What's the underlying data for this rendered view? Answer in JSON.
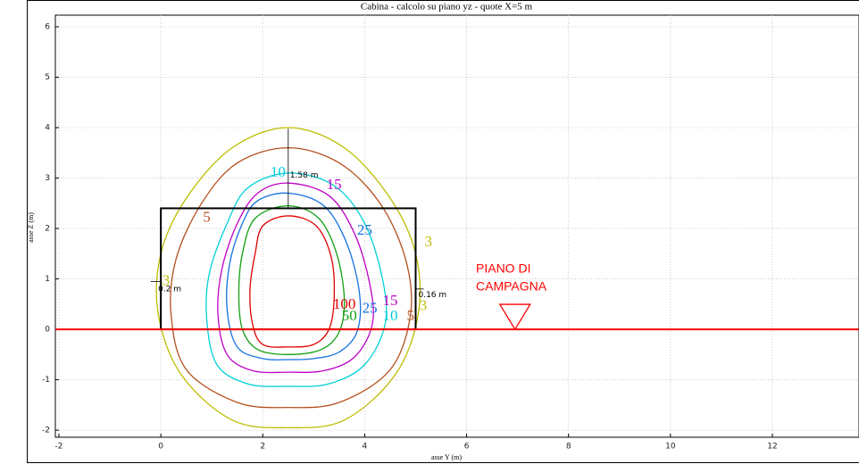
{
  "chart_data": {
    "type": "contour",
    "title": "Cabina  -  calcolo su piano yz  -  quote X=5 m",
    "x_label": "asse Y (m)",
    "y_label": "asse Z (m)",
    "xlim": [
      -2.07,
      13.7
    ],
    "ylim": [
      -2.14,
      6.23
    ],
    "xticks": [
      -2,
      0,
      2,
      4,
      6,
      8,
      10,
      12
    ],
    "yticks": [
      -2,
      -1,
      0,
      1,
      2,
      3,
      4,
      5,
      6
    ],
    "grid": true,
    "series": [
      {
        "name": "3",
        "color": "#bdbd00",
        "x": [
          2.5,
          3.6,
          4.5,
          5.0,
          5.05,
          4.6,
          3.6,
          2.5,
          1.4,
          0.4,
          -0.05,
          0.0,
          0.5,
          1.4
        ],
        "y": [
          4.0,
          3.6,
          2.6,
          1.5,
          0.3,
          -0.9,
          -1.8,
          -1.95,
          -1.8,
          -0.9,
          0.3,
          1.5,
          2.6,
          3.6
        ]
      },
      {
        "name": "5",
        "color": "#b4501e",
        "x": [
          2.5,
          3.5,
          4.3,
          4.8,
          4.9,
          4.5,
          3.5,
          2.5,
          1.5,
          0.5,
          0.2,
          0.3,
          0.8,
          1.5
        ],
        "y": [
          3.6,
          3.3,
          2.5,
          1.4,
          0.3,
          -0.8,
          -1.45,
          -1.55,
          -1.45,
          -0.8,
          0.3,
          1.4,
          2.5,
          3.3
        ]
      },
      {
        "name": "10",
        "color": "#00d0d8",
        "x": [
          2.5,
          3.4,
          4.0,
          4.35,
          4.4,
          4.0,
          3.3,
          2.5,
          1.7,
          1.1,
          0.9,
          0.95,
          1.3,
          1.7
        ],
        "y": [
          3.1,
          2.85,
          2.1,
          1.0,
          0.1,
          -0.7,
          -1.08,
          -1.13,
          -1.08,
          -0.7,
          0.2,
          1.1,
          2.1,
          2.8
        ]
      },
      {
        "name": "15",
        "color": "#c000c8",
        "x": [
          2.5,
          3.3,
          3.8,
          4.1,
          4.15,
          3.8,
          3.2,
          2.5,
          1.8,
          1.3,
          1.12,
          1.2,
          1.5,
          1.9
        ],
        "y": [
          2.9,
          2.65,
          1.9,
          0.9,
          0.1,
          -0.55,
          -0.82,
          -0.85,
          -0.82,
          -0.5,
          0.3,
          1.2,
          2.1,
          2.7
        ]
      },
      {
        "name": "25",
        "color": "#1472e0",
        "x": [
          2.5,
          3.2,
          3.65,
          3.9,
          3.85,
          3.5,
          3.0,
          2.5,
          2.0,
          1.5,
          1.3,
          1.35,
          1.6,
          1.9
        ],
        "y": [
          2.7,
          2.45,
          1.7,
          0.7,
          -0.05,
          -0.45,
          -0.58,
          -0.6,
          -0.58,
          -0.35,
          0.4,
          1.3,
          2.1,
          2.55
        ]
      },
      {
        "name": "50",
        "color": "#10a010",
        "x": [
          2.5,
          3.1,
          3.45,
          3.6,
          3.5,
          3.15,
          2.5,
          1.9,
          1.6,
          1.53,
          1.6,
          1.85
        ],
        "y": [
          2.45,
          2.2,
          1.5,
          0.6,
          -0.05,
          -0.4,
          -0.5,
          -0.4,
          0.0,
          0.7,
          1.5,
          2.2
        ]
      },
      {
        "name": "100",
        "color": "#e00000",
        "x": [
          2.5,
          3.05,
          3.35,
          3.4,
          3.3,
          3.0,
          2.5,
          2.0,
          1.8,
          1.75,
          1.85,
          2.0
        ],
        "y": [
          2.25,
          2.05,
          1.4,
          0.6,
          0.0,
          -0.3,
          -0.35,
          -0.3,
          0.1,
          0.8,
          1.5,
          2.05
        ]
      }
    ],
    "cabin_x": [
      0,
      5
    ],
    "cabin_y": [
      0,
      2.4
    ],
    "ground_y": 0,
    "dimensions": [
      {
        "label": "1.58 m",
        "value": 1.58
      },
      {
        "label": "0.2 m",
        "value": 0.2
      },
      {
        "label": "0.16 m",
        "value": 0.16
      }
    ],
    "ground_label": [
      "PIANO DI",
      "CAMPAGNA"
    ]
  }
}
